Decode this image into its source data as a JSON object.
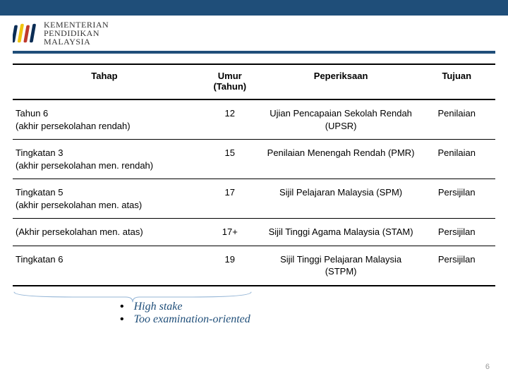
{
  "header": {
    "line1": "KEMENTERIAN",
    "line2": "PENDIDIKAN",
    "line3": "MALAYSIA"
  },
  "table": {
    "columns": [
      "Tahap",
      "Umur (Tahun)",
      "Peperiksaan",
      "Tujuan"
    ],
    "rows": [
      {
        "tahap": "Tahun 6\n(akhir persekolahan rendah)",
        "umur": "12",
        "peperiksaan": "Ujian Pencapaian Sekolah Rendah (UPSR)",
        "tujuan": "Penilaian"
      },
      {
        "tahap": "Tingkatan 3\n(akhir persekolahan men. rendah)",
        "umur": "15",
        "peperiksaan": "Penilaian Menengah Rendah (PMR)",
        "tujuan": "Penilaian"
      },
      {
        "tahap": "Tingkatan 5\n(akhir persekolahan men. atas)",
        "umur": "17",
        "peperiksaan": "Sijil Pelajaran Malaysia (SPM)",
        "tujuan": "Persijilan"
      },
      {
        "tahap": "(Akhir persekolahan men. atas)",
        "umur": "17+",
        "peperiksaan": "Sijil Tinggi Agama Malaysia (STAM)",
        "tujuan": "Persijilan"
      },
      {
        "tahap": "Tingkatan 6",
        "umur": "19",
        "peperiksaan": "Sijil Tinggi Pelajaran Malaysia (STPM)",
        "tujuan": "Persijilan"
      }
    ]
  },
  "annotations": {
    "bullets": [
      "High stake",
      "Too examination-oriented"
    ]
  },
  "page_number": "6",
  "styling": {
    "brand_blue": "#1f4e79",
    "logo_colors": {
      "navy": "#0b2d55",
      "red": "#c0392b",
      "yellow": "#f1c40f"
    },
    "table_border_color": "#000000",
    "body_font_size_pt": 10,
    "header_font_family_serif": "Georgia",
    "annotation_font_family": "Comic Sans MS",
    "column_widths_pct": [
      38,
      14,
      32,
      16
    ],
    "page_bg": "#ffffff",
    "page_number_color": "#9a9a9a"
  }
}
